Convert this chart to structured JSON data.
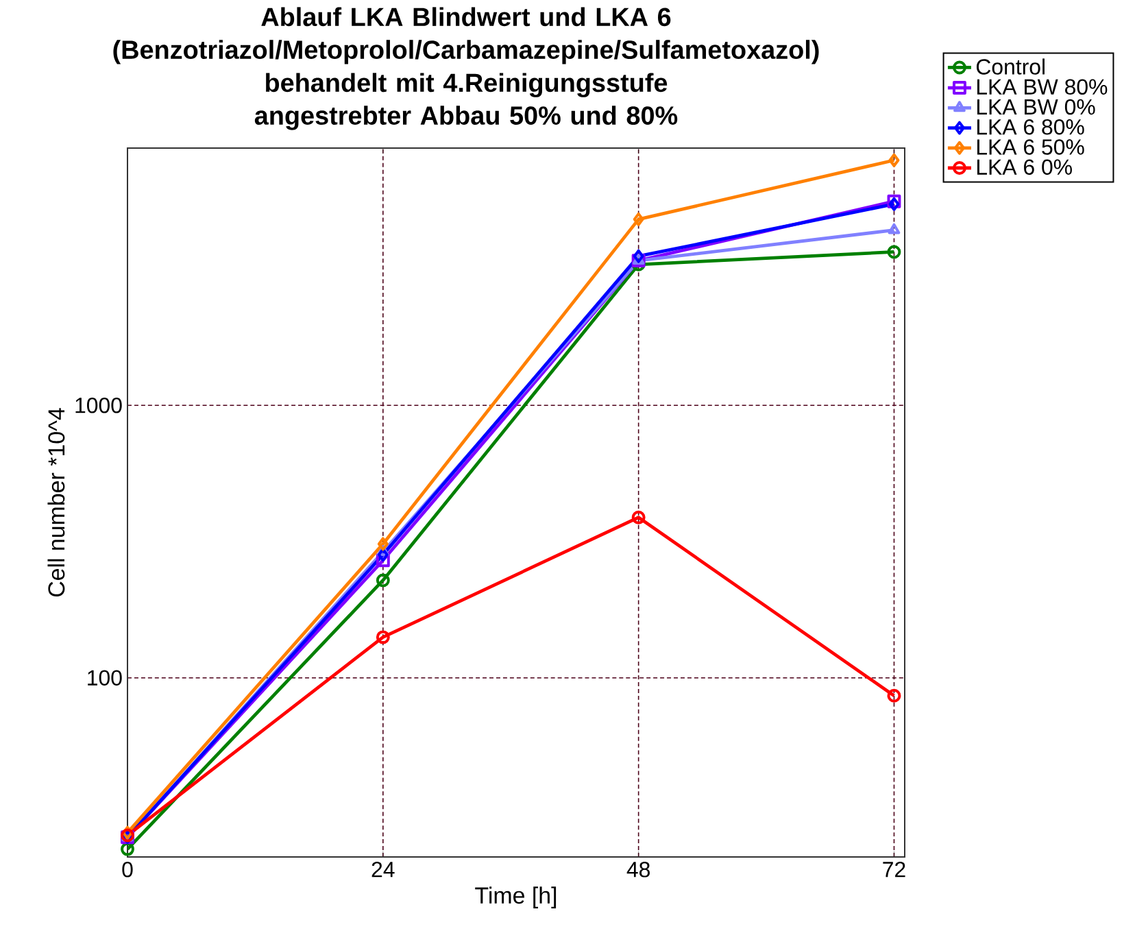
{
  "chart_data": {
    "type": "line",
    "title": "Ablauf LKA Blindwert und LKA 6 (Benzotriazol/Metoprolol/Carbamazepine/Sulfametoxazol)",
    "subtitle": "behandelt mit 4.Reinigungsstufe angestrebter Abbau 50% und 80%",
    "xlabel": "Time [h]",
    "ylabel": "Cell number *10^4",
    "x": [
      0,
      24,
      48,
      72
    ],
    "xlim": [
      0,
      73
    ],
    "xticks": [
      0,
      24,
      48,
      72
    ],
    "ylim": [
      22,
      8800
    ],
    "yticks": [
      100,
      1000
    ],
    "log": "y",
    "grid": true,
    "legend": "top right",
    "line_style": "solid",
    "series": [
      {
        "name": "Control",
        "color": "#008000",
        "marker": "circle",
        "values": [
          23.5,
          228,
          3290,
          3660
        ]
      },
      {
        "name": "LKA BW 80%",
        "color": "#8000ff",
        "marker": "square",
        "values": [
          26,
          270,
          3400,
          5610
        ]
      },
      {
        "name": "LKA BW 0%",
        "color": "#8080ff",
        "marker": "triangle",
        "values": [
          26,
          290,
          3400,
          4400
        ]
      },
      {
        "name": "LKA 6 80%",
        "color": "#0000ff",
        "marker": "diamond",
        "values": [
          26,
          283,
          3530,
          5480
        ]
      },
      {
        "name": "LKA 6 50%",
        "color": "#ff8000",
        "marker": "diamond",
        "values": [
          27,
          310,
          4820,
          7940
        ]
      },
      {
        "name": "LKA 6 0%",
        "color": "#ff0000",
        "marker": "circle",
        "values": [
          26.4,
          141,
          388,
          86
        ]
      }
    ]
  }
}
